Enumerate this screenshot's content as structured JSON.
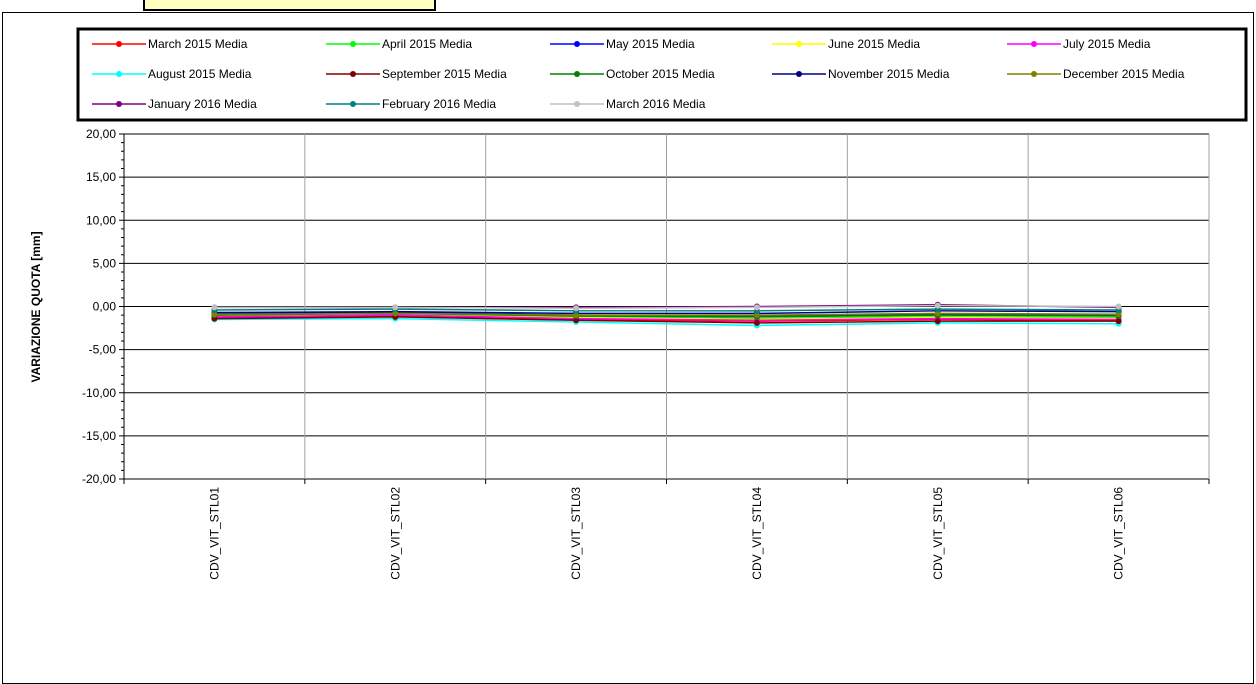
{
  "chart_data": {
    "type": "line",
    "title": "",
    "xlabel": "",
    "ylabel": "VARIAZIONE QUOTA  [mm]",
    "ylim": [
      -20,
      20
    ],
    "ytick_step": 5,
    "ytick_labels": [
      "20,00",
      "15,00",
      "10,00",
      "5,00",
      "0,00",
      "-5,00",
      "-10,00",
      "-15,00",
      "-20,00"
    ],
    "grid": true,
    "legend_position": "top",
    "categories": [
      "CDV_VIT_STL01",
      "CDV_VIT_STL02",
      "CDV_VIT_STL03",
      "CDV_VIT_STL04",
      "CDV_VIT_STL05",
      "CDV_VIT_STL06"
    ],
    "series": [
      {
        "name": "March 2015 Media",
        "color": "#ff0000",
        "values": [
          -1.3,
          -1.1,
          -1.5,
          -1.7,
          -1.5,
          -1.6
        ]
      },
      {
        "name": "April 2015 Media",
        "color": "#00ff00",
        "values": [
          -1.0,
          -0.9,
          -1.2,
          -1.4,
          -1.2,
          -1.3
        ]
      },
      {
        "name": "May 2015 Media",
        "color": "#0000ff",
        "values": [
          -0.8,
          -0.7,
          -1.0,
          -1.1,
          -0.9,
          -1.0
        ]
      },
      {
        "name": "June 2015 Media",
        "color": "#ffff00",
        "values": [
          -1.1,
          -1.0,
          -1.3,
          -1.5,
          -1.3,
          -1.4
        ]
      },
      {
        "name": "July 2015 Media",
        "color": "#ff00ff",
        "values": [
          -1.2,
          -1.0,
          -1.4,
          -1.6,
          -1.4,
          -1.5
        ]
      },
      {
        "name": "August 2015 Media",
        "color": "#00ffff",
        "values": [
          -1.5,
          -1.4,
          -1.8,
          -2.2,
          -1.9,
          -2.0
        ]
      },
      {
        "name": "September 2015 Media",
        "color": "#800000",
        "values": [
          -1.4,
          -1.2,
          -1.6,
          -1.9,
          -1.7,
          -1.7
        ]
      },
      {
        "name": "October 2015 Media",
        "color": "#008000",
        "values": [
          -1.0,
          -0.8,
          -1.1,
          -1.2,
          -1.0,
          -1.1
        ]
      },
      {
        "name": "November 2015 Media",
        "color": "#000080",
        "values": [
          -0.7,
          -0.6,
          -0.8,
          -0.8,
          -0.5,
          -0.6
        ]
      },
      {
        "name": "December 2015 Media",
        "color": "#808000",
        "values": [
          -0.9,
          -0.8,
          -1.0,
          -1.0,
          -0.8,
          -0.9
        ]
      },
      {
        "name": "January 2016 Media",
        "color": "#800080",
        "values": [
          -0.1,
          -0.1,
          -0.1,
          0.0,
          0.2,
          -0.1
        ]
      },
      {
        "name": "February 2016 Media",
        "color": "#008080",
        "values": [
          -0.4,
          -0.3,
          -0.5,
          -0.5,
          -0.3,
          -0.4
        ]
      },
      {
        "name": "March 2016 Media",
        "color": "#c0c0c0",
        "values": [
          -0.1,
          -0.1,
          -0.2,
          -0.1,
          0.1,
          0.0
        ]
      }
    ]
  }
}
